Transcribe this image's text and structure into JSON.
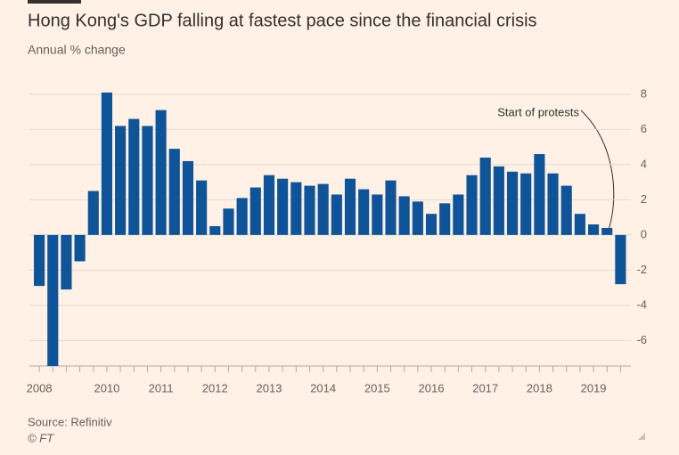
{
  "chart_data": {
    "type": "bar",
    "title": "Hong Kong's GDP falling at fastest pace since the financial crisis",
    "subtitle": "Annual % change",
    "source": "Source: Refinitiv",
    "credit": "© FT",
    "annotation": "Start of protests",
    "color": "#0f5499",
    "categories": [
      "2008",
      null,
      null,
      null,
      null,
      "2010",
      null,
      null,
      null,
      "2011",
      null,
      null,
      null,
      "2012",
      null,
      null,
      null,
      "2013",
      null,
      null,
      null,
      "2014",
      null,
      null,
      null,
      "2015",
      null,
      null,
      null,
      "2016",
      null,
      null,
      null,
      "2017",
      null,
      null,
      null,
      "2018",
      null,
      null,
      null,
      "2019",
      null,
      null
    ],
    "values": [
      -2.9,
      -7.8,
      -3.1,
      -1.5,
      2.5,
      8.1,
      6.2,
      6.6,
      6.2,
      7.1,
      4.9,
      4.2,
      3.1,
      0.5,
      1.5,
      2.1,
      2.7,
      3.4,
      3.2,
      3.0,
      2.8,
      2.9,
      2.3,
      3.2,
      2.6,
      2.3,
      3.1,
      2.2,
      1.9,
      1.2,
      1.8,
      2.3,
      3.4,
      4.4,
      3.9,
      3.6,
      3.5,
      4.6,
      3.5,
      2.8,
      1.2,
      0.6,
      0.4,
      -2.8
    ],
    "ylim": [
      -7.4,
      8.4
    ],
    "yticks": [
      -6,
      -4,
      -2,
      0,
      2,
      4,
      6,
      8
    ],
    "grid": true
  }
}
